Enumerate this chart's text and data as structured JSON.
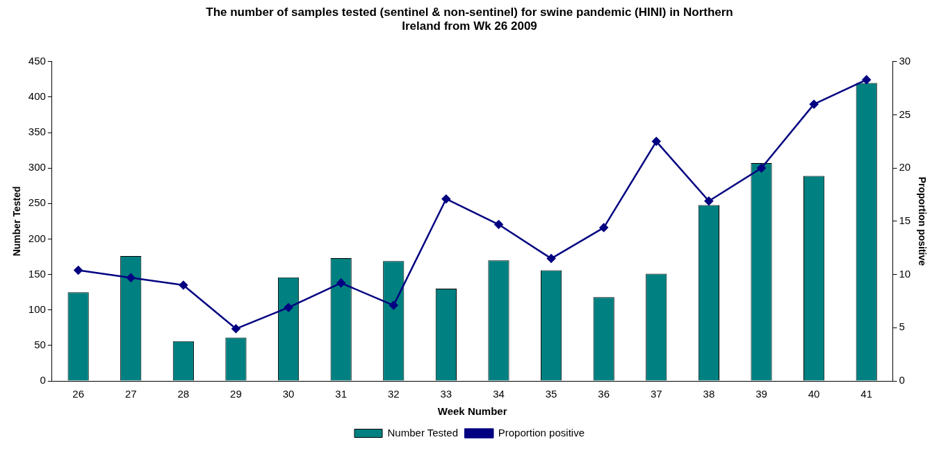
{
  "chart_data": {
    "type": "bar",
    "title": "The number of samples tested (sentinel & non-sentinel) for swine pandemic (HINI) in Northern Ireland from Wk 26 2009",
    "xlabel": "Week Number",
    "ylabel": "Number Tested",
    "y2label": "Proportion positive",
    "categories": [
      "26",
      "27",
      "28",
      "29",
      "30",
      "31",
      "32",
      "33",
      "34",
      "35",
      "36",
      "37",
      "38",
      "39",
      "40",
      "41"
    ],
    "series": [
      {
        "name": "Number Tested",
        "color": "#008080",
        "values": [
          125,
          176,
          56,
          61,
          146,
          173,
          169,
          130,
          170,
          156,
          118,
          151,
          248,
          307,
          289,
          420
        ]
      },
      {
        "name": "Proportion positive",
        "type": "line",
        "axis": "y2",
        "color": "#000080",
        "marker": "diamond",
        "values": [
          10.4,
          9.7,
          9.0,
          4.9,
          6.9,
          9.2,
          7.1,
          17.1,
          14.7,
          11.5,
          14.4,
          22.5,
          16.9,
          20.0,
          26.0,
          28.3
        ]
      }
    ],
    "ylim": [
      0,
      450
    ],
    "yticks": [
      0,
      50,
      100,
      150,
      200,
      250,
      300,
      350,
      400,
      450
    ],
    "y2lim": [
      0,
      30
    ],
    "y2ticks": [
      0,
      5,
      10,
      15,
      20,
      25,
      30
    ],
    "grid": false,
    "legend": "bottom"
  }
}
